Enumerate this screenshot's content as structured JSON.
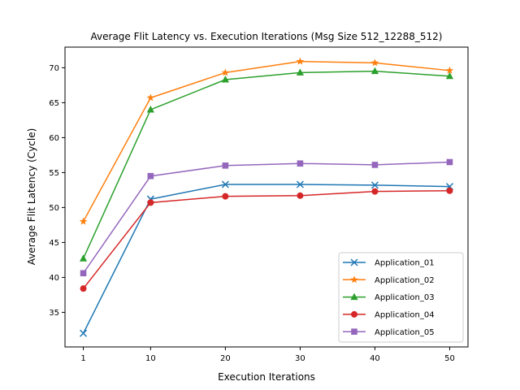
{
  "chart_data": {
    "type": "line",
    "title": "Average Flit Latency vs. Execution Iterations (Msg Size 512_12288_512)",
    "xlabel": "Execution Iterations",
    "ylabel": "Average Flit Latency (Cycle)",
    "categories": [
      "1",
      "10",
      "20",
      "30",
      "40",
      "50"
    ],
    "x": [
      1,
      10,
      20,
      30,
      40,
      50
    ],
    "xlim": [
      -1.45,
      52.45
    ],
    "ylim": [
      30.05,
      72.95
    ],
    "yticks": [
      35,
      40,
      45,
      50,
      55,
      60,
      65,
      70
    ],
    "grid": false,
    "legend_position": "lower right",
    "series": [
      {
        "name": "Application_01",
        "color": "#1f77b4",
        "marker": "x",
        "values": [
          32.0,
          51.2,
          53.3,
          53.3,
          53.2,
          53.0
        ]
      },
      {
        "name": "Application_02",
        "color": "#ff7f0e",
        "marker": "star",
        "values": [
          48.0,
          65.7,
          69.3,
          70.9,
          70.7,
          69.6
        ]
      },
      {
        "name": "Application_03",
        "color": "#2ca02c",
        "marker": "triangle",
        "values": [
          42.7,
          64.0,
          68.3,
          69.3,
          69.5,
          68.8
        ]
      },
      {
        "name": "Application_04",
        "color": "#d62728",
        "marker": "circle",
        "values": [
          38.4,
          50.7,
          51.6,
          51.7,
          52.3,
          52.4
        ]
      },
      {
        "name": "Application_05",
        "color": "#9467bd",
        "marker": "square",
        "values": [
          40.6,
          54.5,
          56.0,
          56.3,
          56.1,
          56.5
        ]
      }
    ]
  }
}
